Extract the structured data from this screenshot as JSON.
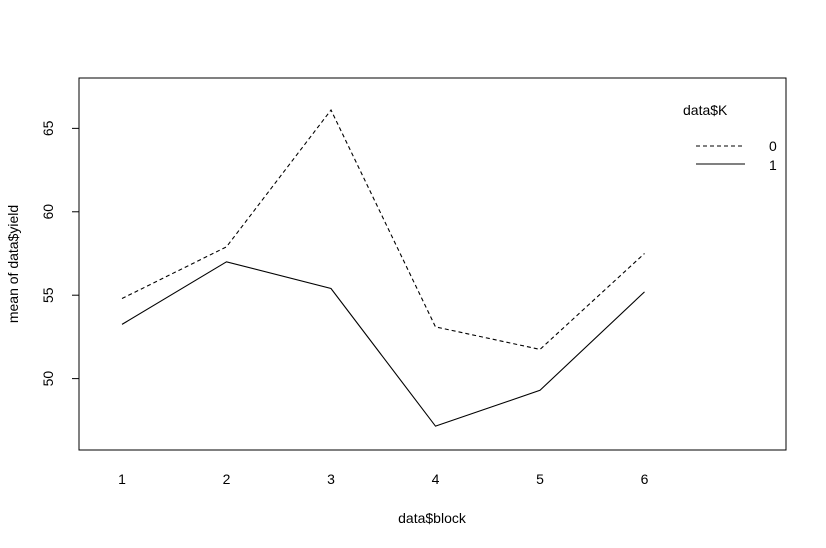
{
  "chart_data": {
    "type": "line",
    "title": "",
    "xlabel": "data$block",
    "ylabel": "mean of  data$yield",
    "categories": [
      "1",
      "2",
      "3",
      "4",
      "5",
      "6"
    ],
    "yticks": [
      "50",
      "55",
      "60",
      "65"
    ],
    "ylim": [
      46.5,
      67
    ],
    "grid": false,
    "legend": {
      "title": "data$K",
      "placement": "top-right"
    },
    "series": [
      {
        "name": "0",
        "line_style": "dashed",
        "color": "#000000",
        "values": [
          54.8,
          57.9,
          66.1,
          53.1,
          51.75,
          57.5
        ]
      },
      {
        "name": "1",
        "line_style": "solid",
        "color": "#000000",
        "values": [
          53.25,
          57.0,
          55.4,
          47.15,
          49.3,
          55.2
        ]
      }
    ]
  }
}
